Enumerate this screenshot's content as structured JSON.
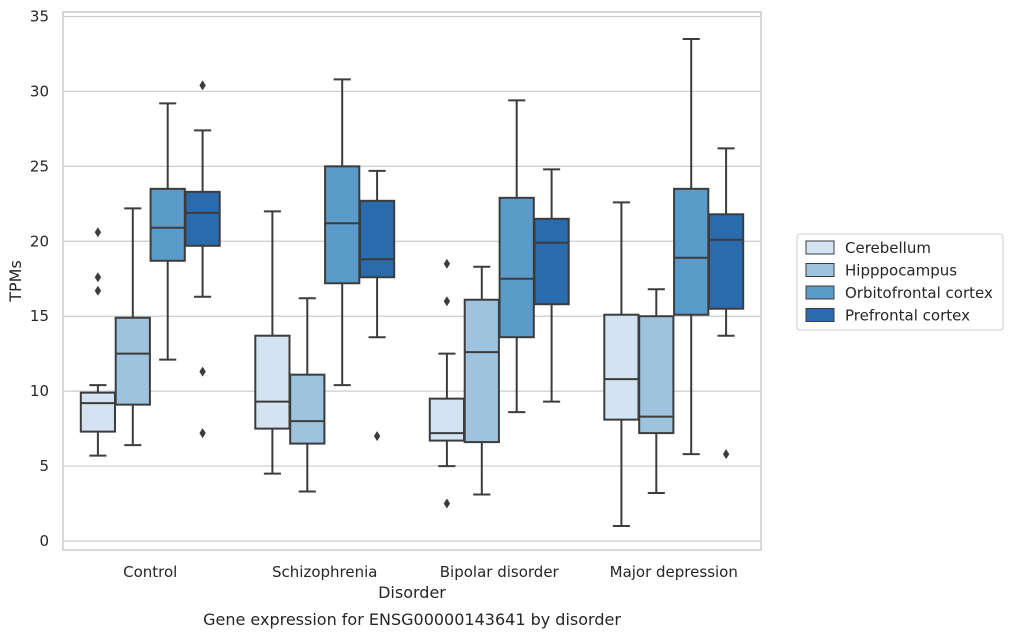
{
  "chart_data": {
    "type": "box",
    "title": "",
    "caption": "Gene expression for ENSG00000143641 by disorder",
    "xlabel": "Disorder",
    "ylabel": "TPMs",
    "ylim": [
      -0.6,
      35.3
    ],
    "yticks": [
      0,
      5,
      10,
      15,
      20,
      25,
      30,
      35
    ],
    "grid": "horizontal",
    "legend_position": "right",
    "categories": [
      "Control",
      "Schizophrenia",
      "Bipolar disorder",
      "Major depression"
    ],
    "series": [
      {
        "name": "Cerebellum",
        "color": "#d3e3f1",
        "boxes": [
          {
            "whislo": 5.7,
            "q1": 7.3,
            "med": 9.2,
            "q3": 9.9,
            "whishi": 10.4,
            "fliers": [
              16.7,
              17.6,
              20.6
            ]
          },
          {
            "whislo": 4.5,
            "q1": 7.5,
            "med": 9.3,
            "q3": 13.7,
            "whishi": 22.0,
            "fliers": []
          },
          {
            "whislo": 5.0,
            "q1": 6.7,
            "med": 7.2,
            "q3": 9.5,
            "whishi": 12.5,
            "fliers": [
              2.5,
              16.0,
              18.5
            ]
          },
          {
            "whislo": 1.0,
            "q1": 8.1,
            "med": 10.8,
            "q3": 15.1,
            "whishi": 22.6,
            "fliers": []
          }
        ]
      },
      {
        "name": "Hipppocampus",
        "color": "#9dc3df",
        "boxes": [
          {
            "whislo": 6.4,
            "q1": 9.1,
            "med": 12.5,
            "q3": 14.9,
            "whishi": 22.2,
            "fliers": []
          },
          {
            "whislo": 3.3,
            "q1": 6.5,
            "med": 8.0,
            "q3": 11.1,
            "whishi": 16.2,
            "fliers": []
          },
          {
            "whislo": 3.1,
            "q1": 6.6,
            "med": 12.6,
            "q3": 16.1,
            "whishi": 18.3,
            "fliers": []
          },
          {
            "whislo": 3.2,
            "q1": 7.2,
            "med": 8.3,
            "q3": 15.0,
            "whishi": 16.8,
            "fliers": []
          }
        ]
      },
      {
        "name": "Orbitofrontal cortex",
        "color": "#5b9bc9",
        "boxes": [
          {
            "whislo": 12.1,
            "q1": 18.7,
            "med": 20.9,
            "q3": 23.5,
            "whishi": 29.2,
            "fliers": []
          },
          {
            "whislo": 10.4,
            "q1": 17.2,
            "med": 21.2,
            "q3": 25.0,
            "whishi": 30.8,
            "fliers": []
          },
          {
            "whislo": 8.6,
            "q1": 13.6,
            "med": 17.5,
            "q3": 22.9,
            "whishi": 29.4,
            "fliers": []
          },
          {
            "whislo": 5.8,
            "q1": 15.1,
            "med": 18.9,
            "q3": 23.5,
            "whishi": 33.5,
            "fliers": []
          }
        ]
      },
      {
        "name": "Prefrontal cortex",
        "color": "#2a6bad",
        "boxes": [
          {
            "whislo": 16.3,
            "q1": 19.7,
            "med": 21.9,
            "q3": 23.3,
            "whishi": 27.4,
            "fliers": [
              7.2,
              11.3,
              30.4
            ]
          },
          {
            "whislo": 13.6,
            "q1": 17.6,
            "med": 18.8,
            "q3": 22.7,
            "whishi": 24.7,
            "fliers": [
              7.0
            ]
          },
          {
            "whislo": 9.3,
            "q1": 15.8,
            "med": 19.9,
            "q3": 21.5,
            "whishi": 24.8,
            "fliers": []
          },
          {
            "whislo": 13.7,
            "q1": 15.5,
            "med": 20.1,
            "q3": 21.8,
            "whishi": 26.2,
            "fliers": [
              5.8
            ]
          }
        ]
      }
    ]
  }
}
